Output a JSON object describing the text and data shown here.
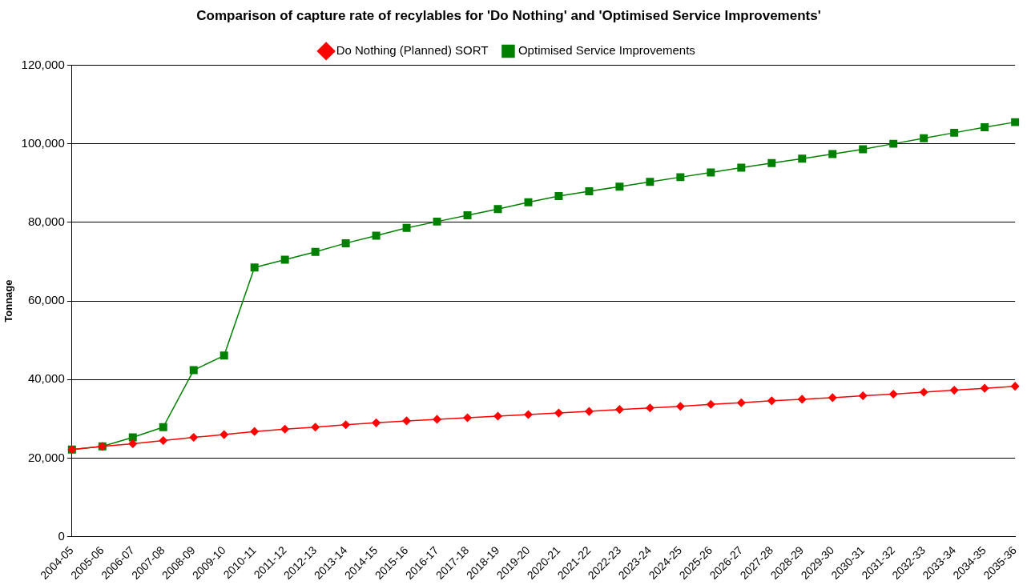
{
  "chart_data": {
    "type": "line",
    "title": "Comparison of capture rate of recylables for 'Do Nothing' and 'Optimised Service Improvements'",
    "ylabel": "Tonnage",
    "categories": [
      "2004-05",
      "2005-06",
      "2006-07",
      "2007-08",
      "2008-09",
      "2009-10",
      "2010-11",
      "2011-12",
      "2012-13",
      "2013-14",
      "2014-15",
      "2015-16",
      "2016-17",
      "2017-18",
      "2018-19",
      "2019-20",
      "2020-21",
      "2021-22",
      "2022-23",
      "2023-24",
      "2024-25",
      "2025-26",
      "2026-27",
      "2027-28",
      "2028-29",
      "2029-30",
      "2030-31",
      "2031-32",
      "2032-33",
      "2033-34",
      "2034-35",
      "2035-36"
    ],
    "series": [
      {
        "name": "Optimised Service Improvements",
        "color": "#008000",
        "marker": "square",
        "values": [
          22200,
          23000,
          25300,
          27900,
          42400,
          46100,
          68500,
          70500,
          72500,
          74700,
          76600,
          78600,
          80200,
          81800,
          83400,
          85100,
          86700,
          87900,
          89100,
          90300,
          91500,
          92700,
          93900,
          95100,
          96200,
          97400,
          98600,
          100000,
          101400,
          102800,
          104200,
          105500
        ]
      },
      {
        "name": "Do Nothing (Planned) SORT",
        "color": "#ff0000",
        "marker": "diamond",
        "values": [
          22200,
          23000,
          23700,
          24500,
          25300,
          26000,
          26800,
          27400,
          27900,
          28500,
          29000,
          29500,
          29900,
          30300,
          30700,
          31100,
          31500,
          31900,
          32400,
          32800,
          33200,
          33700,
          34100,
          34600,
          35000,
          35400,
          35900,
          36300,
          36800,
          37300,
          37800,
          38300
        ]
      }
    ],
    "ylim": [
      0,
      120000
    ],
    "yticks": [
      {
        "value": 0,
        "label": "0"
      },
      {
        "value": 20000,
        "label": "20,000"
      },
      {
        "value": 40000,
        "label": "40,000"
      },
      {
        "value": 60000,
        "label": "60,000"
      },
      {
        "value": 80000,
        "label": "80,000"
      },
      {
        "value": 100000,
        "label": "100,000"
      },
      {
        "value": 120000,
        "label": "120,000"
      }
    ],
    "grid": "y",
    "legend": "top",
    "line_style": "solid"
  }
}
